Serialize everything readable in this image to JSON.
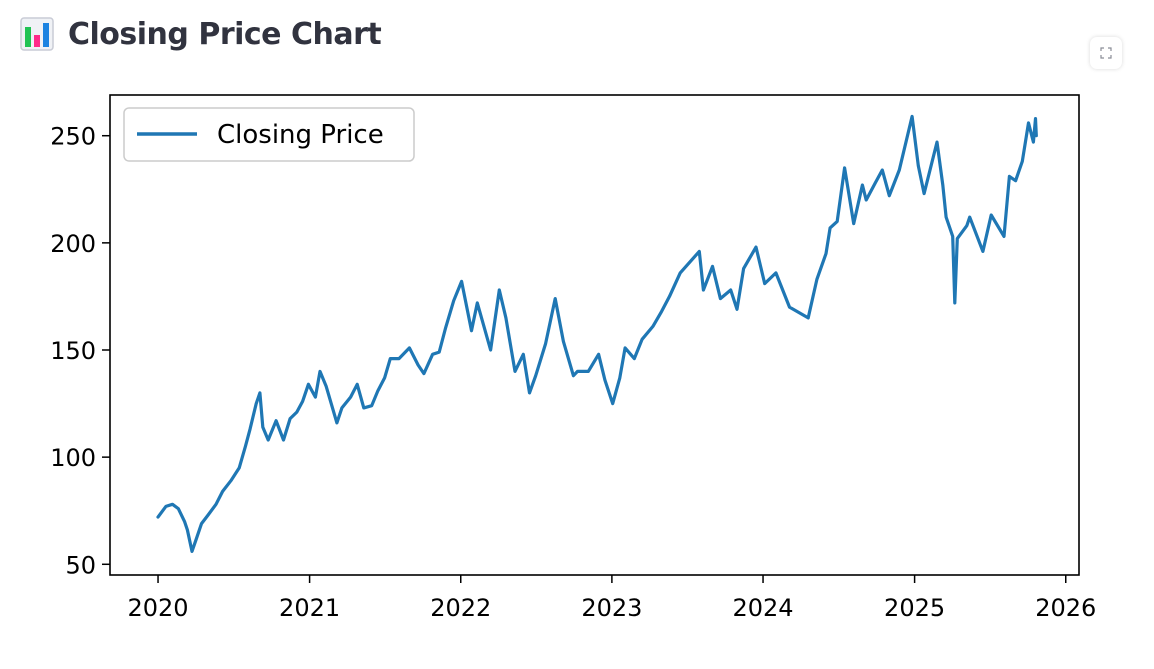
{
  "header": {
    "title": "Closing Price Chart",
    "icon": "bar-chart-icon"
  },
  "toolbar": {
    "fullscreen_icon": "fullscreen-icon"
  },
  "colors": {
    "line": "#1f77b4",
    "title": "#31333f",
    "icon_bars": [
      "#21c354",
      "#ff2b8a",
      "#1c83e1"
    ]
  },
  "chart_data": {
    "type": "line",
    "title": "",
    "xlabel": "",
    "ylabel": "",
    "xlim": [
      "2019-09-07",
      "2026-02-02"
    ],
    "ylim": [
      45,
      269
    ],
    "x_ticks": [
      "2020",
      "2021",
      "2022",
      "2023",
      "2024",
      "2025",
      "2026"
    ],
    "y_ticks": [
      50,
      100,
      150,
      200,
      250
    ],
    "grid": false,
    "legend": {
      "placement": "upper-left",
      "entries": [
        "Closing Price"
      ]
    },
    "series": [
      {
        "name": "Closing Price",
        "color": "#1f77b4",
        "points": [
          [
            "2020-01-01",
            72
          ],
          [
            "2020-01-20",
            77
          ],
          [
            "2020-02-05",
            78
          ],
          [
            "2020-02-19",
            76
          ],
          [
            "2020-03-05",
            70
          ],
          [
            "2020-03-12",
            66
          ],
          [
            "2020-03-23",
            56
          ],
          [
            "2020-04-01",
            61
          ],
          [
            "2020-04-15",
            69
          ],
          [
            "2020-05-01",
            73
          ],
          [
            "2020-05-20",
            78
          ],
          [
            "2020-06-05",
            84
          ],
          [
            "2020-06-25",
            89
          ],
          [
            "2020-07-15",
            95
          ],
          [
            "2020-07-30",
            105
          ],
          [
            "2020-08-10",
            113
          ],
          [
            "2020-08-25",
            125
          ],
          [
            "2020-09-03",
            130
          ],
          [
            "2020-09-10",
            114
          ],
          [
            "2020-09-23",
            108
          ],
          [
            "2020-10-12",
            117
          ],
          [
            "2020-10-30",
            108
          ],
          [
            "2020-11-15",
            118
          ],
          [
            "2020-12-01",
            121
          ],
          [
            "2020-12-15",
            126
          ],
          [
            "2020-12-29",
            134
          ],
          [
            "2021-01-15",
            128
          ],
          [
            "2021-01-26",
            140
          ],
          [
            "2021-02-10",
            133
          ],
          [
            "2021-03-08",
            116
          ],
          [
            "2021-03-20",
            123
          ],
          [
            "2021-04-10",
            128
          ],
          [
            "2021-04-26",
            134
          ],
          [
            "2021-05-12",
            123
          ],
          [
            "2021-05-31",
            124
          ],
          [
            "2021-06-15",
            131
          ],
          [
            "2021-07-01",
            137
          ],
          [
            "2021-07-15",
            146
          ],
          [
            "2021-08-05",
            146
          ],
          [
            "2021-08-30",
            151
          ],
          [
            "2021-09-20",
            143
          ],
          [
            "2021-10-04",
            139
          ],
          [
            "2021-10-25",
            148
          ],
          [
            "2021-11-10",
            149
          ],
          [
            "2021-11-25",
            160
          ],
          [
            "2021-12-15",
            173
          ],
          [
            "2022-01-03",
            182
          ],
          [
            "2022-01-27",
            159
          ],
          [
            "2022-02-10",
            172
          ],
          [
            "2022-03-14",
            150
          ],
          [
            "2022-04-04",
            178
          ],
          [
            "2022-04-20",
            165
          ],
          [
            "2022-05-12",
            140
          ],
          [
            "2022-06-01",
            148
          ],
          [
            "2022-06-16",
            130
          ],
          [
            "2022-07-01",
            138
          ],
          [
            "2022-07-25",
            153
          ],
          [
            "2022-08-17",
            174
          ],
          [
            "2022-09-06",
            154
          ],
          [
            "2022-09-30",
            138
          ],
          [
            "2022-10-10",
            140
          ],
          [
            "2022-11-05",
            140
          ],
          [
            "2022-11-30",
            148
          ],
          [
            "2022-12-15",
            136
          ],
          [
            "2023-01-03",
            125
          ],
          [
            "2023-01-20",
            137
          ],
          [
            "2023-02-02",
            151
          ],
          [
            "2023-02-24",
            146
          ],
          [
            "2023-03-15",
            155
          ],
          [
            "2023-04-10",
            161
          ],
          [
            "2023-05-01",
            168
          ],
          [
            "2023-05-20",
            175
          ],
          [
            "2023-06-15",
            186
          ],
          [
            "2023-07-31",
            196
          ],
          [
            "2023-08-10",
            178
          ],
          [
            "2023-09-01",
            189
          ],
          [
            "2023-09-20",
            174
          ],
          [
            "2023-10-15",
            178
          ],
          [
            "2023-10-30",
            169
          ],
          [
            "2023-11-15",
            188
          ],
          [
            "2023-12-15",
            198
          ],
          [
            "2024-01-05",
            181
          ],
          [
            "2024-02-01",
            186
          ],
          [
            "2024-03-05",
            170
          ],
          [
            "2024-04-19",
            165
          ],
          [
            "2024-05-10",
            183
          ],
          [
            "2024-06-01",
            195
          ],
          [
            "2024-06-11",
            207
          ],
          [
            "2024-06-28",
            210
          ],
          [
            "2024-07-16",
            235
          ],
          [
            "2024-08-07",
            209
          ],
          [
            "2024-08-28",
            227
          ],
          [
            "2024-09-06",
            220
          ],
          [
            "2024-09-28",
            228
          ],
          [
            "2024-10-15",
            234
          ],
          [
            "2024-11-01",
            222
          ],
          [
            "2024-11-25",
            234
          ],
          [
            "2024-12-26",
            259
          ],
          [
            "2025-01-10",
            236
          ],
          [
            "2025-01-24",
            223
          ],
          [
            "2025-02-24",
            247
          ],
          [
            "2025-03-10",
            227
          ],
          [
            "2025-03-18",
            212
          ],
          [
            "2025-04-03",
            203
          ],
          [
            "2025-04-08",
            172
          ],
          [
            "2025-04-14",
            202
          ],
          [
            "2025-05-07",
            208
          ],
          [
            "2025-05-14",
            212
          ],
          [
            "2025-06-15",
            196
          ],
          [
            "2025-07-05",
            213
          ],
          [
            "2025-08-05",
            203
          ],
          [
            "2025-08-18",
            231
          ],
          [
            "2025-09-02",
            229
          ],
          [
            "2025-09-18",
            238
          ],
          [
            "2025-10-03",
            256
          ],
          [
            "2025-10-15",
            247
          ],
          [
            "2025-10-20",
            258
          ],
          [
            "2025-10-22",
            250
          ]
        ]
      }
    ]
  }
}
